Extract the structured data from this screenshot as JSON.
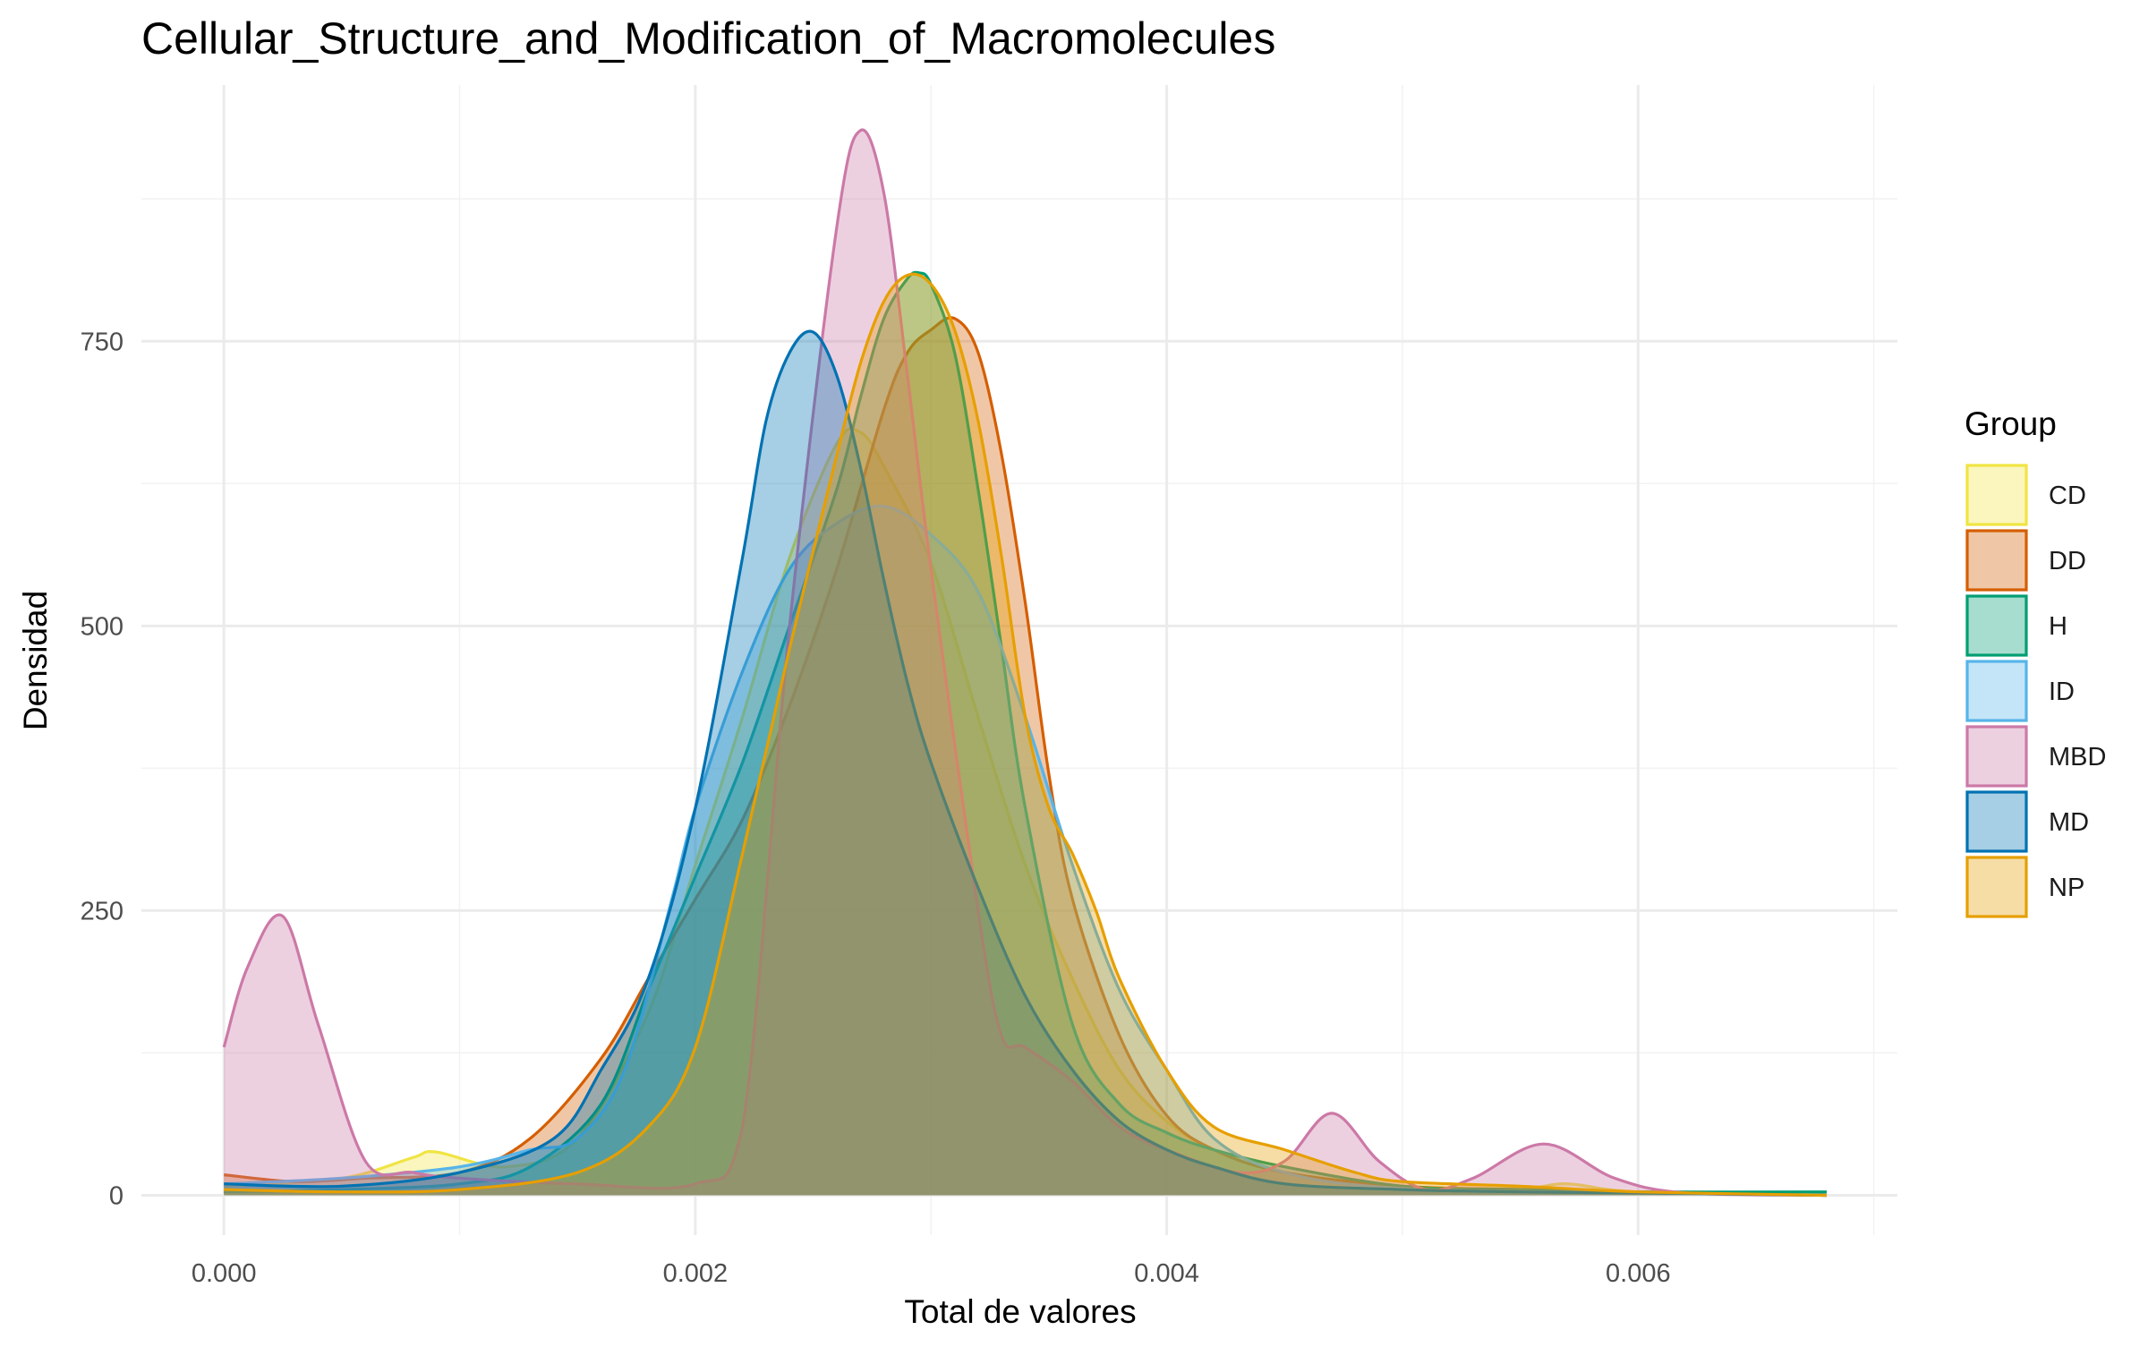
{
  "chart_data": {
    "type": "area",
    "subtype": "density",
    "title": "Cellular_Structure_and_Modification_of_Macromolecules",
    "xlabel": "Total de valores",
    "ylabel": "Densidad",
    "xlim": [
      -0.00035,
      0.0071
    ],
    "ylim": [
      -35,
      975
    ],
    "x_ticks": [
      0,
      0.002,
      0.004,
      0.006
    ],
    "x_tick_labels": [
      "0.000",
      "0.002",
      "0.004",
      "0.006"
    ],
    "y_ticks": [
      0,
      250,
      500,
      750
    ],
    "y_tick_labels": [
      "0",
      "250",
      "500",
      "750"
    ],
    "grid": true,
    "fill_opacity": 0.35,
    "legend": {
      "title": "Group",
      "position": "right"
    },
    "series": [
      {
        "name": "CD",
        "color": "#F0E442",
        "x": [
          0,
          0.0005,
          0.0008,
          0.0009,
          0.0012,
          0.0015,
          0.0018,
          0.002,
          0.0022,
          0.0024,
          0.0026,
          0.0027,
          0.0028,
          0.003,
          0.0032,
          0.0034,
          0.0036,
          0.0038,
          0.004,
          0.0042,
          0.0045,
          0.005,
          0.0055,
          0.0057,
          0.006,
          0.0068
        ],
        "y": [
          8,
          15,
          33,
          38,
          25,
          50,
          160,
          290,
          420,
          560,
          660,
          670,
          640,
          555,
          420,
          290,
          190,
          110,
          65,
          40,
          20,
          8,
          6,
          10,
          3,
          0
        ]
      },
      {
        "name": "DD",
        "color": "#D55E00",
        "x": [
          0,
          0.0003,
          0.0006,
          0.001,
          0.0013,
          0.0016,
          0.0018,
          0.002,
          0.0022,
          0.0024,
          0.0026,
          0.0028,
          0.0029,
          0.003,
          0.0031,
          0.0032,
          0.0033,
          0.0034,
          0.0035,
          0.0036,
          0.0038,
          0.004,
          0.0042,
          0.0045,
          0.005,
          0.0055,
          0.006,
          0.0068
        ],
        "y": [
          18,
          12,
          15,
          20,
          50,
          120,
          190,
          260,
          330,
          430,
          550,
          690,
          740,
          760,
          770,
          740,
          650,
          520,
          370,
          260,
          140,
          70,
          40,
          20,
          8,
          5,
          3,
          0
        ]
      },
      {
        "name": "H",
        "color": "#009E73",
        "x": [
          0,
          0.0005,
          0.001,
          0.0013,
          0.0016,
          0.0018,
          0.0019,
          0.002,
          0.0022,
          0.0024,
          0.0026,
          0.0027,
          0.0028,
          0.0029,
          0.00295,
          0.003,
          0.0031,
          0.0032,
          0.0033,
          0.0034,
          0.0036,
          0.0038,
          0.004,
          0.0042,
          0.0045,
          0.005,
          0.0055,
          0.006,
          0.0068
        ],
        "y": [
          3,
          5,
          10,
          25,
          80,
          180,
          230,
          280,
          380,
          500,
          620,
          700,
          770,
          805,
          810,
          800,
          740,
          620,
          480,
          340,
          150,
          80,
          55,
          40,
          25,
          8,
          5,
          3,
          3
        ]
      },
      {
        "name": "ID",
        "color": "#56B4E9",
        "x": [
          0,
          0.0005,
          0.001,
          0.0013,
          0.0015,
          0.0017,
          0.0019,
          0.002,
          0.0022,
          0.0024,
          0.0026,
          0.0028,
          0.003,
          0.0032,
          0.0034,
          0.0036,
          0.0038,
          0.004,
          0.0042,
          0.0045,
          0.005,
          0.006,
          0.0068
        ],
        "y": [
          10,
          15,
          25,
          40,
          50,
          110,
          260,
          340,
          460,
          550,
          590,
          605,
          580,
          530,
          420,
          290,
          180,
          110,
          50,
          20,
          6,
          2,
          0
        ]
      },
      {
        "name": "MBD",
        "color": "#CC79A7",
        "x": [
          0,
          0.0001,
          0.00025,
          0.0004,
          0.0006,
          0.0008,
          0.001,
          0.0015,
          0.002,
          0.0022,
          0.0024,
          0.0026,
          0.0027,
          0.0028,
          0.0029,
          0.003,
          0.0032,
          0.0033,
          0.0034,
          0.0036,
          0.0038,
          0.004,
          0.0043,
          0.0045,
          0.0047,
          0.0049,
          0.0051,
          0.0053,
          0.0056,
          0.0059,
          0.0062,
          0.0068
        ],
        "y": [
          130,
          200,
          245,
          150,
          30,
          20,
          15,
          10,
          10,
          60,
          500,
          850,
          935,
          880,
          720,
          550,
          250,
          140,
          130,
          100,
          60,
          40,
          20,
          30,
          72,
          30,
          5,
          15,
          45,
          15,
          2,
          0
        ]
      },
      {
        "name": "MD",
        "color": "#0072B2",
        "x": [
          0,
          0.0005,
          0.001,
          0.0014,
          0.0016,
          0.0018,
          0.002,
          0.0022,
          0.0023,
          0.0024,
          0.0025,
          0.0026,
          0.0027,
          0.0028,
          0.0029,
          0.003,
          0.0032,
          0.0034,
          0.0036,
          0.0038,
          0.004,
          0.0042,
          0.0045,
          0.005,
          0.0055,
          0.006,
          0.0068
        ],
        "y": [
          10,
          8,
          20,
          50,
          110,
          190,
          340,
          560,
          680,
          740,
          758,
          720,
          640,
          540,
          450,
          380,
          270,
          175,
          110,
          65,
          40,
          25,
          10,
          5,
          3,
          2,
          0
        ]
      },
      {
        "name": "NP",
        "color": "#E69F00",
        "x": [
          0,
          0.0005,
          0.001,
          0.0015,
          0.0018,
          0.002,
          0.0022,
          0.0024,
          0.0026,
          0.0027,
          0.0028,
          0.0029,
          0.003,
          0.0031,
          0.0032,
          0.0033,
          0.0034,
          0.0035,
          0.0036,
          0.0037,
          0.0038,
          0.004,
          0.0042,
          0.0045,
          0.0048,
          0.005,
          0.0055,
          0.006,
          0.0068
        ],
        "y": [
          5,
          3,
          5,
          20,
          60,
          130,
          300,
          480,
          650,
          730,
          785,
          808,
          800,
          760,
          680,
          560,
          420,
          340,
          300,
          250,
          190,
          110,
          60,
          40,
          20,
          12,
          8,
          3,
          0
        ]
      }
    ]
  }
}
